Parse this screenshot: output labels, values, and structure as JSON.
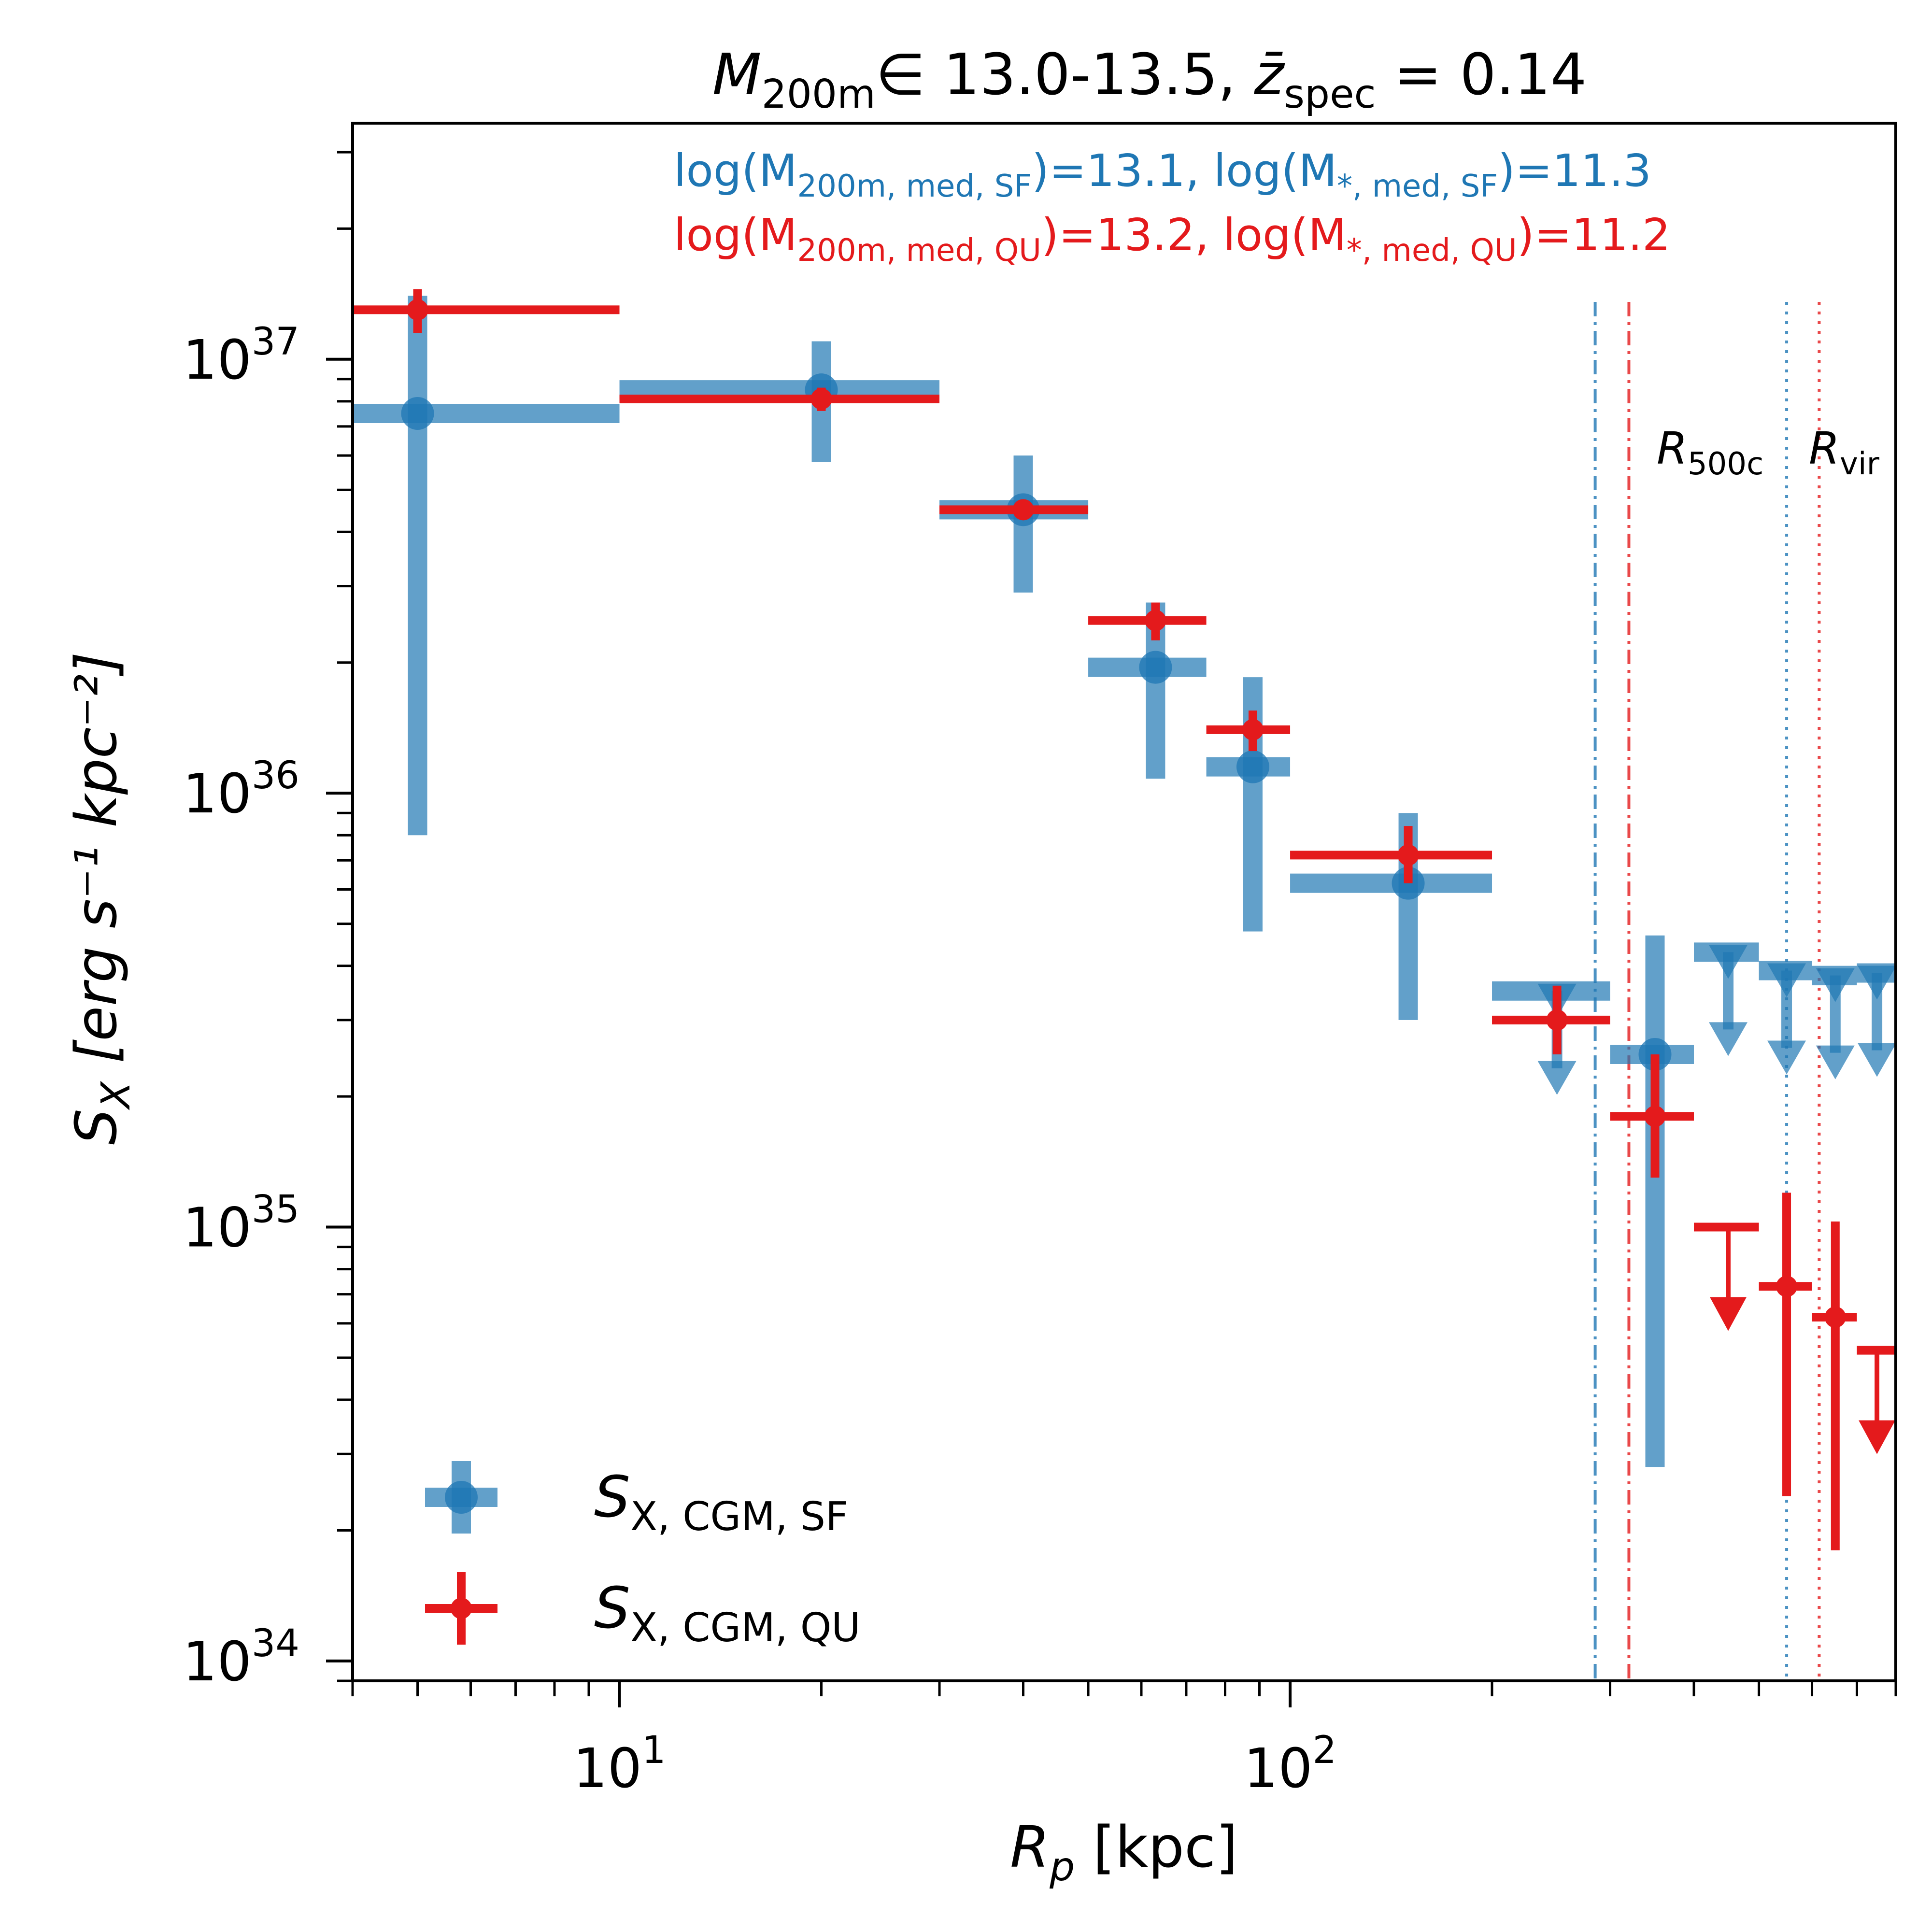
{
  "chart_data": {
    "type": "scatter",
    "title": {
      "main": "M",
      "main_sub": "200m",
      "range_text": "∈ 13.0-13.5, ",
      "z": "z̄",
      "z_sub": "spec",
      "z_value": " = 0.14"
    },
    "xlabel": {
      "main": "R",
      "sub": "p",
      "unit": " [kpc]"
    },
    "ylabel": {
      "main": "S",
      "sub": "X",
      "units": " [erg s⁻¹ kpc⁻²]"
    },
    "x_scale": "log",
    "y_scale": "log",
    "xlim": [
      4,
      800
    ],
    "ylim": [
      9e+33,
      3.5e+37
    ],
    "x_ticks": [
      {
        "value": 10,
        "base": "10",
        "exp": "1"
      },
      {
        "value": 100,
        "base": "10",
        "exp": "2"
      }
    ],
    "y_ticks": [
      {
        "value": 1e+34,
        "base": "10",
        "exp": "34"
      },
      {
        "value": 1e+35,
        "base": "10",
        "exp": "35"
      },
      {
        "value": 1e+36,
        "base": "10",
        "exp": "36"
      },
      {
        "value": 1e+37,
        "base": "10",
        "exp": "37"
      }
    ],
    "grid": false,
    "legend_position": "lower-left",
    "annotations": {
      "sf_line": {
        "p1": "log(M",
        "s1": "200m, med, SF",
        "p2": ")=13.1, log(M",
        "s2": "*, med, SF",
        "p3": ")=11.3",
        "color": "#1f77b4"
      },
      "qu_line": {
        "p1": "log(M",
        "s1": "200m, med, QU",
        "p2": ")=13.2, log(M",
        "s2": "*, med, QU",
        "p3": ")=11.2",
        "color": "#e41a1c"
      },
      "r500c": {
        "main": "R",
        "sub": "500c"
      },
      "rvir": {
        "main": "R",
        "sub": "vir"
      }
    },
    "vlines": [
      {
        "x": 285,
        "color": "#1f77b4",
        "style": "dashdot",
        "label": "R500c SF"
      },
      {
        "x": 320,
        "color": "#e41a1c",
        "style": "dashdot",
        "label": "R500c QU"
      },
      {
        "x": 550,
        "color": "#1f77b4",
        "style": "dotted",
        "label": "Rvir SF"
      },
      {
        "x": 615,
        "color": "#e41a1c",
        "style": "dotted",
        "label": "Rvir QU"
      }
    ],
    "series": [
      {
        "name": "S",
        "name_sub": "X, CGM, SF",
        "color": "#1f77b4",
        "points": [
          {
            "x": 5,
            "xlo": 4,
            "xhi": 10,
            "y": 7.5e+36,
            "ylo": 8e+35,
            "yhi": 1.4e+37
          },
          {
            "x": 20,
            "xlo": 10,
            "xhi": 30,
            "y": 8.5e+36,
            "ylo": 5.8e+36,
            "yhi": 1.1e+37
          },
          {
            "x": 40,
            "xlo": 30,
            "xhi": 50,
            "y": 4.5e+36,
            "ylo": 2.9e+36,
            "yhi": 6e+36
          },
          {
            "x": 63,
            "xlo": 50,
            "xhi": 75,
            "y": 1.95e+36,
            "ylo": 1.08e+36,
            "yhi": 2.75e+36
          },
          {
            "x": 88,
            "xlo": 75,
            "xhi": 100,
            "y": 1.15e+36,
            "ylo": 4.8e+35,
            "yhi": 1.85e+36
          },
          {
            "x": 150,
            "xlo": 100,
            "xhi": 200,
            "y": 6.2e+35,
            "ylo": 3e+35,
            "yhi": 9e+35
          },
          {
            "x": 250,
            "xlo": 200,
            "xhi": 300,
            "y": 3.5e+35,
            "upper": true
          },
          {
            "x": 350,
            "xlo": 300,
            "xhi": 400,
            "y": 2.5e+35,
            "ylo": 2.8e+34,
            "yhi": 4.7e+35
          },
          {
            "x": 450,
            "xlo": 400,
            "xhi": 500,
            "y": 4.3e+35,
            "upper": true
          },
          {
            "x": 550,
            "xlo": 500,
            "xhi": 600,
            "y": 3.9e+35,
            "upper": true
          },
          {
            "x": 650,
            "xlo": 600,
            "xhi": 700,
            "y": 3.8e+35,
            "upper": true
          },
          {
            "x": 750,
            "xlo": 700,
            "xhi": 800,
            "y": 3.85e+35,
            "upper": true
          }
        ]
      },
      {
        "name": "S",
        "name_sub": "X, CGM, QU",
        "color": "#e41a1c",
        "points": [
          {
            "x": 5,
            "xlo": 4,
            "xhi": 10,
            "y": 1.3e+37,
            "ylo": 1.15e+37,
            "yhi": 1.45e+37
          },
          {
            "x": 20,
            "xlo": 10,
            "xhi": 30,
            "y": 8.1e+36,
            "ylo": 7.6e+36,
            "yhi": 8.6e+36
          },
          {
            "x": 40,
            "xlo": 30,
            "xhi": 50,
            "y": 4.5e+36,
            "ylo": 4.3e+36,
            "yhi": 4.7e+36
          },
          {
            "x": 63,
            "xlo": 50,
            "xhi": 75,
            "y": 2.5e+36,
            "ylo": 2.25e+36,
            "yhi": 2.75e+36
          },
          {
            "x": 88,
            "xlo": 75,
            "xhi": 100,
            "y": 1.4e+36,
            "ylo": 1.25e+36,
            "yhi": 1.55e+36
          },
          {
            "x": 150,
            "xlo": 100,
            "xhi": 200,
            "y": 7.2e+35,
            "ylo": 6.2e+35,
            "yhi": 8.4e+35
          },
          {
            "x": 250,
            "xlo": 200,
            "xhi": 300,
            "y": 3e+35,
            "ylo": 2.5e+35,
            "yhi": 3.6e+35
          },
          {
            "x": 350,
            "xlo": 300,
            "xhi": 400,
            "y": 1.8e+35,
            "ylo": 1.3e+35,
            "yhi": 2.5e+35
          },
          {
            "x": 450,
            "xlo": 400,
            "xhi": 500,
            "y": 1e+35,
            "upper": true
          },
          {
            "x": 550,
            "xlo": 500,
            "xhi": 600,
            "y": 7.3e+34,
            "ylo": 2.4e+34,
            "yhi": 1.2e+35
          },
          {
            "x": 650,
            "xlo": 600,
            "xhi": 700,
            "y": 6.2e+34,
            "ylo": 1.8e+34,
            "yhi": 1.03e+35
          },
          {
            "x": 750,
            "xlo": 700,
            "xhi": 800,
            "y": 5.2e+34,
            "upper": true
          }
        ]
      }
    ]
  }
}
